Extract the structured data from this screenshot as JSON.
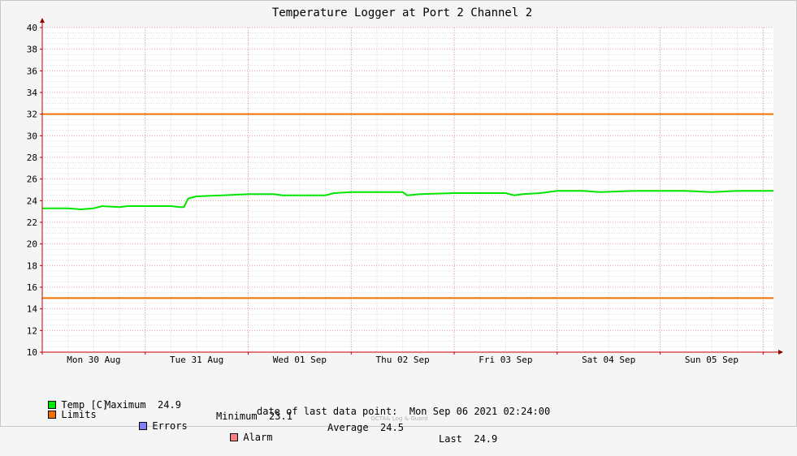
{
  "chart_data": {
    "type": "line",
    "title": "Temperature Logger at Port 2 Channel 2",
    "xlabel": "",
    "ylabel": "",
    "ylim": [
      10,
      40
    ],
    "y_ticks": [
      10,
      12,
      14,
      16,
      18,
      20,
      22,
      24,
      26,
      28,
      30,
      32,
      34,
      36,
      38,
      40
    ],
    "x_range": [
      "2021-08-30 00:00",
      "2021-09-06 02:24"
    ],
    "x_ticks": [
      {
        "label": "Mon 30 Aug",
        "date": "2021-08-30 12:00"
      },
      {
        "label": "Tue 31 Aug",
        "date": "2021-08-31 12:00"
      },
      {
        "label": "Wed 01 Sep",
        "date": "2021-09-01 12:00"
      },
      {
        "label": "Thu 02 Sep",
        "date": "2021-09-02 12:00"
      },
      {
        "label": "Fri 03 Sep",
        "date": "2021-09-03 12:00"
      },
      {
        "label": "Sat 04 Sep",
        "date": "2021-09-04 12:00"
      },
      {
        "label": "Sun 05 Sep",
        "date": "2021-09-05 12:00"
      }
    ],
    "grid": true,
    "series": [
      {
        "name": "Temp [C]",
        "color": "#00e600",
        "points": [
          [
            "2021-08-30 00:00",
            23.3
          ],
          [
            "2021-08-30 06:00",
            23.3
          ],
          [
            "2021-08-30 09:00",
            23.2
          ],
          [
            "2021-08-30 12:00",
            23.3
          ],
          [
            "2021-08-30 14:00",
            23.5
          ],
          [
            "2021-08-30 18:00",
            23.4
          ],
          [
            "2021-08-30 20:00",
            23.5
          ],
          [
            "2021-08-31 00:00",
            23.5
          ],
          [
            "2021-08-31 06:00",
            23.5
          ],
          [
            "2021-08-31 08:00",
            23.4
          ],
          [
            "2021-08-31 09:00",
            23.4
          ],
          [
            "2021-08-31 10:00",
            24.2
          ],
          [
            "2021-08-31 12:00",
            24.4
          ],
          [
            "2021-08-31 18:00",
            24.5
          ],
          [
            "2021-09-01 00:00",
            24.6
          ],
          [
            "2021-09-01 06:00",
            24.6
          ],
          [
            "2021-09-01 08:00",
            24.5
          ],
          [
            "2021-09-01 14:00",
            24.5
          ],
          [
            "2021-09-01 18:00",
            24.5
          ],
          [
            "2021-09-01 20:00",
            24.7
          ],
          [
            "2021-09-02 00:00",
            24.8
          ],
          [
            "2021-09-02 06:00",
            24.8
          ],
          [
            "2021-09-02 12:00",
            24.8
          ],
          [
            "2021-09-02 13:00",
            24.5
          ],
          [
            "2021-09-02 16:00",
            24.6
          ],
          [
            "2021-09-03 00:00",
            24.7
          ],
          [
            "2021-09-03 12:00",
            24.7
          ],
          [
            "2021-09-03 14:00",
            24.5
          ],
          [
            "2021-09-03 16:00",
            24.6
          ],
          [
            "2021-09-03 20:00",
            24.7
          ],
          [
            "2021-09-04 00:00",
            24.9
          ],
          [
            "2021-09-04 06:00",
            24.9
          ],
          [
            "2021-09-04 10:00",
            24.8
          ],
          [
            "2021-09-04 18:00",
            24.9
          ],
          [
            "2021-09-05 00:00",
            24.9
          ],
          [
            "2021-09-05 06:00",
            24.9
          ],
          [
            "2021-09-05 12:00",
            24.8
          ],
          [
            "2021-09-05 18:00",
            24.9
          ],
          [
            "2021-09-06 00:00",
            24.9
          ],
          [
            "2021-09-06 02:24",
            24.9
          ]
        ]
      }
    ],
    "limits": {
      "name": "Limits",
      "color": "#f07000",
      "values": [
        32,
        15
      ]
    },
    "legend": {
      "placement": "bottom-left",
      "items": [
        {
          "label": "Temp [C]",
          "color": "#00e600"
        },
        {
          "label": "Limits",
          "color": "#f07000"
        },
        {
          "label": "Errors",
          "color": "#7f7fff"
        },
        {
          "label": "Alarm",
          "color": "#ff7f7f"
        }
      ]
    },
    "stats": [
      {
        "label": "Maximum",
        "value": "24.9"
      },
      {
        "label": "Minimum",
        "value": "23.1"
      },
      {
        "label": "Average",
        "value": "24.5"
      },
      {
        "label": "Last",
        "value": "24.9"
      }
    ],
    "last_data_point_label": "date of last data point:",
    "last_data_point_value": "Mon Sep 06 2021 02:24:00",
    "watermark": "OCTA& Log & Guard"
  }
}
